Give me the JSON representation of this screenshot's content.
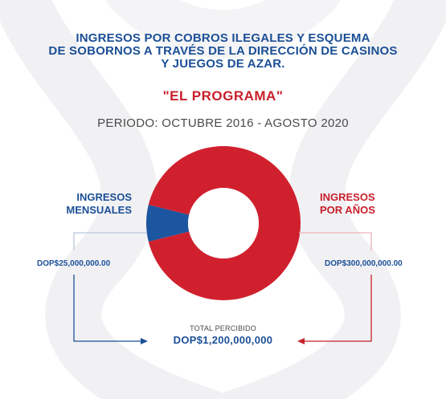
{
  "heading": {
    "line1": "INGRESOS POR COBROS ILEGALES Y ESQUEMA",
    "line2": "DE SOBORNOS A TRAVÉS DE LA DIRECCIÓN DE CASINOS",
    "line3": "Y JUEGOS DE AZAR.",
    "subtitle": "\"EL PROGRAMA\"",
    "period": "PERIODO: OCTUBRE 2016 - AGOSTO 2020"
  },
  "left": {
    "label_line1": "INGRESOS",
    "label_line2": "MENSUALES",
    "value": "DOP$25,000,000.00"
  },
  "right": {
    "label_line1": "INGRESOS",
    "label_line2": "POR AÑOS",
    "value": "DOP$300,000,000.00"
  },
  "total": {
    "label": "TOTAL PERCIBIDO",
    "value": "DOP$1,200,000,000"
  },
  "colors": {
    "blue": "#1b4f96",
    "red": "#c8202b",
    "donut_red": "#d0202e",
    "donut_blue": "#1c55a0",
    "ribbon": "#f1f1f4"
  },
  "chart_data": {
    "type": "pie",
    "donut": true,
    "slices": [
      {
        "label": "INGRESOS MENSUALES",
        "value": 25000000
      },
      {
        "label": "INGRESOS POR AÑOS",
        "value": 300000000
      }
    ]
  }
}
